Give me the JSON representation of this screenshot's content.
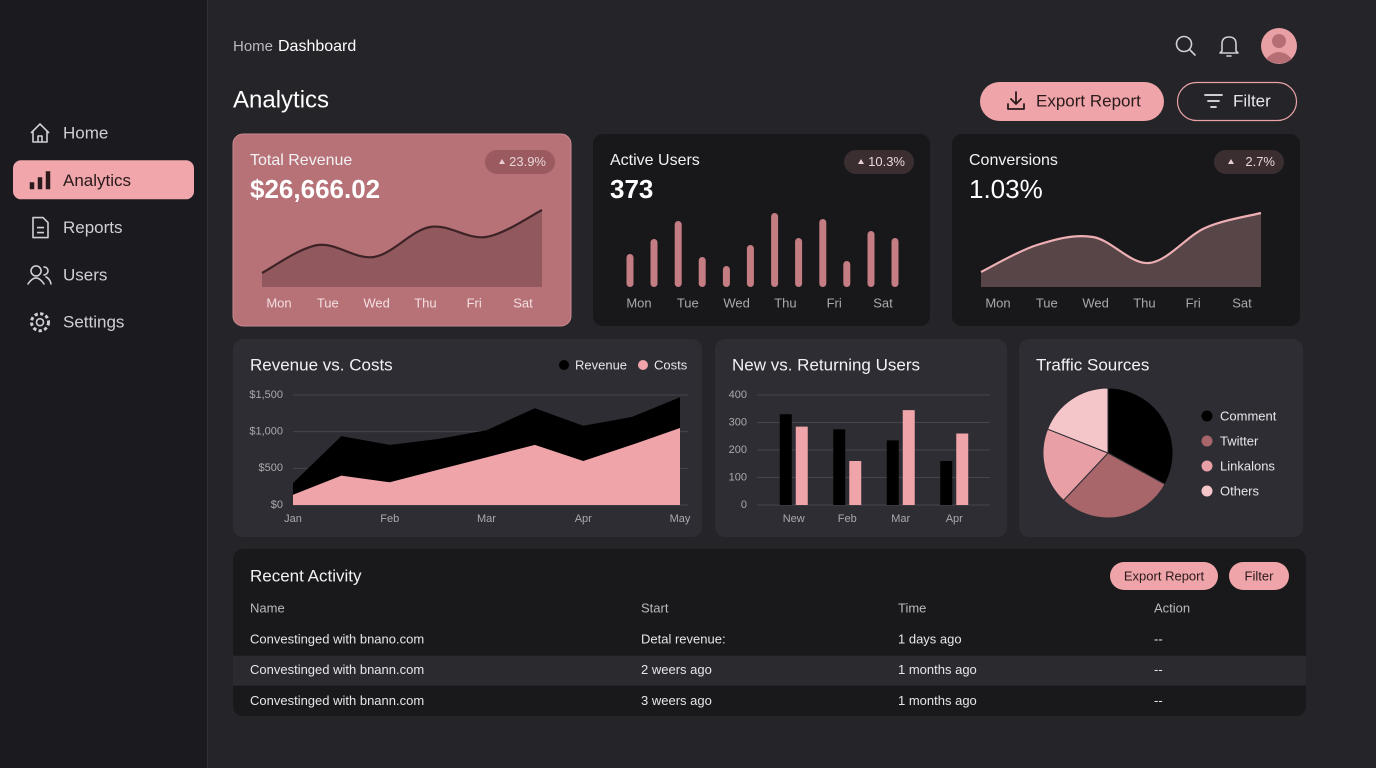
{
  "sidebar": {
    "nav": [
      {
        "label": "Home"
      },
      {
        "label": "Analytics",
        "active": true
      },
      {
        "label": "Reports"
      },
      {
        "label": "Users"
      },
      {
        "label": "Settings"
      }
    ]
  },
  "header": {
    "breadcrumb": [
      "Home",
      "Dashboard"
    ],
    "title": "Analytics",
    "buttons": [
      "Export Report",
      "Filter"
    ]
  },
  "kpis": [
    {
      "label": "Total Revenue",
      "value": "$26,666.02",
      "change": "23.9%",
      "chart_data": {
        "type": "area",
        "categories": [
          "Mon",
          "Tue",
          "Wed",
          "Thu",
          "Fri",
          "Sat"
        ],
        "values": [
          14,
          42,
          30,
          60,
          50,
          77
        ],
        "color": "#3d2226"
      }
    },
    {
      "label": "Active Users",
      "value": "373",
      "change": "10.3%",
      "chart_data": {
        "type": "bar",
        "categories": [
          "Mon",
          "Tue",
          "Wed",
          "Thu",
          "Fri",
          "Sat"
        ],
        "series": [
          {
            "color": "#c47d83",
            "values": [
              33,
              66,
              21,
              74,
              68,
              56
            ]
          },
          {
            "color": "#c47d83",
            "values": [
              48,
              30,
              42,
              49,
              26,
              49
            ]
          }
        ]
      }
    },
    {
      "label": "Conversions",
      "value": "1.03%",
      "change": "2.7%",
      "chart_data": {
        "type": "area",
        "categories": [
          "Mon",
          "Tue",
          "Wed",
          "Thu",
          "Fri",
          "Sat"
        ],
        "values": [
          15,
          42,
          50,
          24,
          59,
          74
        ],
        "color": "#eeb0b4"
      }
    }
  ],
  "panels": [
    {
      "chart_data": {
        "type": "area",
        "title": "Revenue vs. Costs",
        "categories": [
          "Jan",
          null,
          "Feb",
          null,
          "Mar",
          null,
          "Apr",
          null,
          "May"
        ],
        "series": [
          {
            "name": "Revenue",
            "color": "#000000",
            "values": [
              300,
              940,
              820,
              900,
              1020,
              1320,
              1080,
              1200,
              1470
            ]
          },
          {
            "name": "Costs",
            "color": "#eea4a8",
            "values": [
              140,
              400,
              310,
              480,
              650,
              820,
              600,
              820,
              1050
            ]
          }
        ],
        "ylim": [
          0,
          1500
        ],
        "yticks": [
          {
            "value": 0,
            "label": "$0"
          },
          {
            "value": 500,
            "label": "$500"
          },
          {
            "value": 1000,
            "label": "$1,000"
          },
          {
            "value": 1500,
            "label": "$1,500"
          }
        ],
        "grid": true
      }
    },
    {
      "chart_data": {
        "type": "bar",
        "title": "New vs. Returning Users",
        "categories": [
          "New",
          "Feb",
          "Mar",
          "Apr"
        ],
        "series": [
          {
            "color": "#000000",
            "values": [
              330,
              275,
              235,
              160
            ]
          },
          {
            "color": "#eea4a8",
            "values": [
              285,
              160,
              345,
              260
            ]
          }
        ],
        "ylim": [
          0,
          400
        ],
        "yticks": [
          0,
          100,
          200,
          300,
          400
        ],
        "grid": true
      }
    },
    {
      "chart_data": {
        "type": "pie",
        "title": "Traffic Sources",
        "categories": [
          "Comment",
          "Twitter",
          "Linkalons",
          "Others"
        ],
        "values": [
          33,
          29,
          19,
          19
        ],
        "colors": [
          "#000000",
          "#a8666b",
          "#e8a0a6",
          "#f4c6c9"
        ]
      }
    }
  ],
  "table": {
    "title": "Recent Activity",
    "buttons": [
      "Export Report",
      "Filter"
    ],
    "columns": [
      "Name",
      "Start",
      "Time",
      "Action"
    ],
    "rows": [
      [
        "Convestinged with bnano.com",
        "Detal revenue:",
        "1 days ago",
        "--"
      ],
      [
        "Convestinged with bnann.com",
        "2 weers ago",
        "1 months ago",
        "--"
      ],
      [
        "Convestinged with bnann.com",
        "3 weers ago",
        "1 months ago",
        "--"
      ]
    ]
  }
}
